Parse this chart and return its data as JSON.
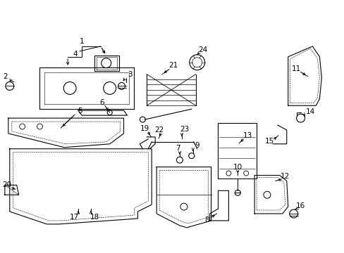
{
  "bg_color": "#ffffff",
  "line_color": "#000000",
  "label_color": "#000000",
  "figsize": [
    4.89,
    3.6
  ],
  "dpi": 100
}
